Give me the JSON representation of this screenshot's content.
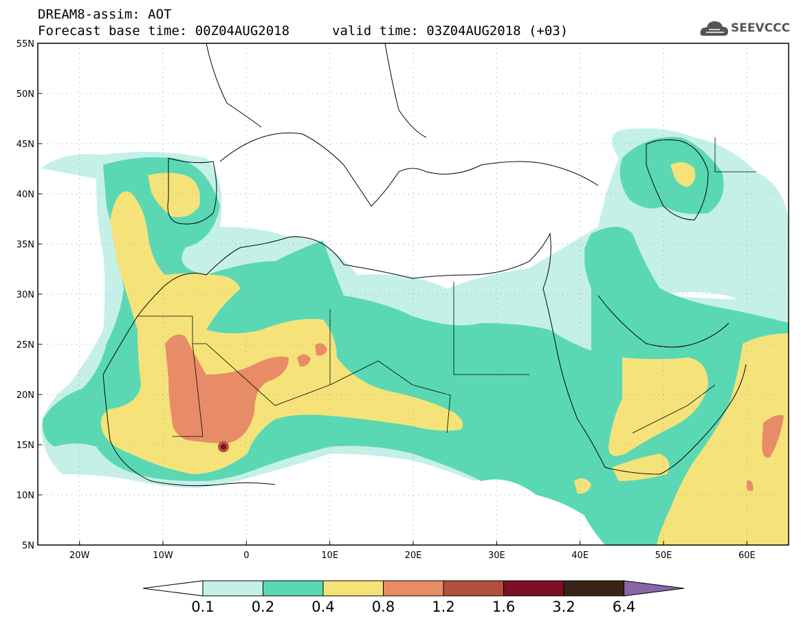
{
  "header": {
    "title": "DREAM8-assim: AOT",
    "base_time": "Forecast base time: 00Z04AUG2018",
    "valid_time": "valid time: 03Z04AUG2018 (+03)",
    "logo_text": "SEEVCCC"
  },
  "map": {
    "lon_labels": [
      "20W",
      "10W",
      "0",
      "10E",
      "20E",
      "30E",
      "40E",
      "50E",
      "60E"
    ],
    "lat_labels": [
      "55N",
      "50N",
      "45N",
      "40N",
      "35N",
      "30N",
      "25N",
      "20N",
      "15N",
      "10N",
      "5N"
    ]
  },
  "colorbar": {
    "labels": [
      "0.1",
      "0.2",
      "0.4",
      "0.8",
      "1.2",
      "1.6",
      "3.2",
      "6.4"
    ],
    "colors": [
      "#c4f0e8",
      "#5ad8b4",
      "#f5e37a",
      "#e88c68",
      "#b0503e",
      "#7a0f26",
      "#3a2418",
      "#8a64a8"
    ]
  }
}
